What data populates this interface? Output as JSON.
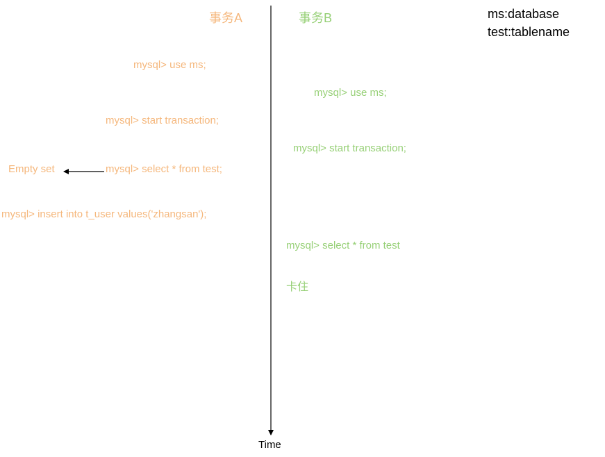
{
  "transaction_a": {
    "title": "事务A",
    "steps": [
      "mysql> use ms;",
      "mysql> start transaction;",
      "mysql> select * from test;",
      "mysql> insert into t_user values('zhangsan');"
    ],
    "result": "Empty set"
  },
  "transaction_b": {
    "title": "事务B",
    "steps": [
      "mysql> use ms;",
      "mysql> start transaction;",
      "mysql> select * from test",
      "卡住"
    ]
  },
  "legend": {
    "line1": "ms:database",
    "line2": "test:tablename"
  },
  "timeline": {
    "label": "Time"
  },
  "colors": {
    "transaction_a": "#f5b77c",
    "transaction_b": "#97d077",
    "axis": "#000000"
  }
}
